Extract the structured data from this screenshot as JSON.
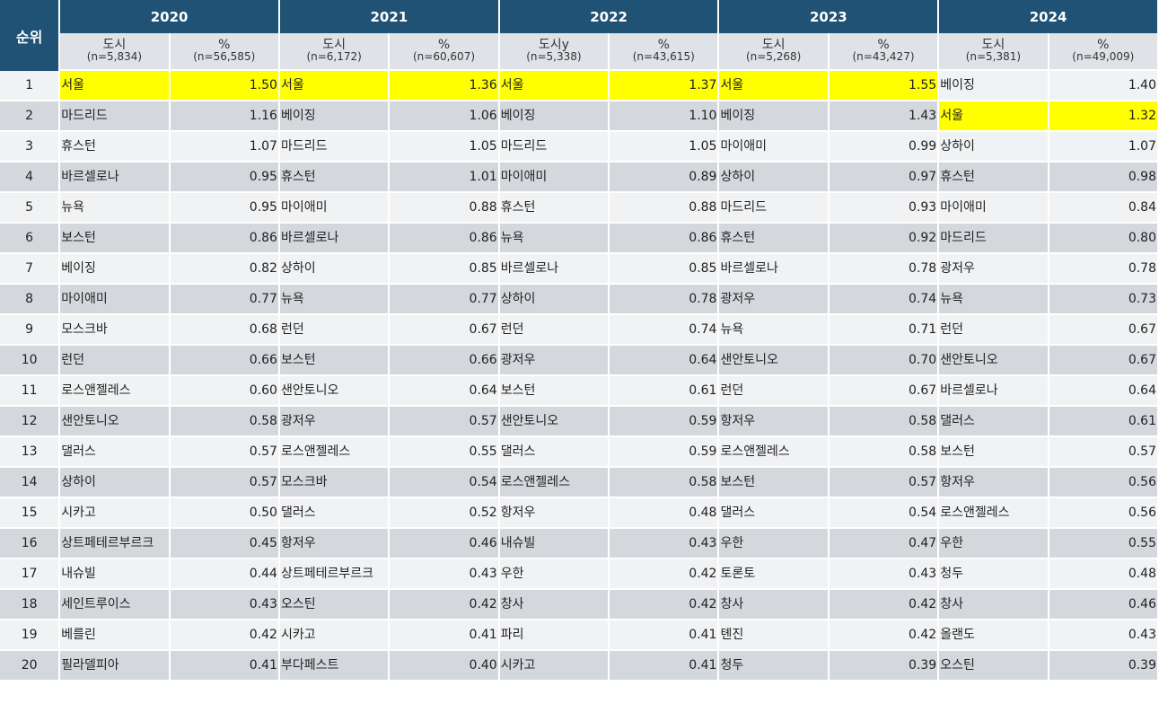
{
  "header": {
    "rank_label": "순위",
    "years": [
      "2020",
      "2021",
      "2022",
      "2023",
      "2024"
    ],
    "subheaders": [
      {
        "city": "도시",
        "city_n": "(n=5,834)",
        "pct": "%",
        "pct_n": "(n=56,585)"
      },
      {
        "city": "도시",
        "city_n": "(n=6,172)",
        "pct": "%",
        "pct_n": "(n=60,607)"
      },
      {
        "city": "도시y",
        "city_n": "(n=5,338)",
        "pct": "%",
        "pct_n": "(n=43,615)"
      },
      {
        "city": "도시",
        "city_n": "(n=5,268)",
        "pct": "%",
        "pct_n": "(n=43,427)"
      },
      {
        "city": "도시",
        "city_n": "(n=5,381)",
        "pct": "%",
        "pct_n": "(n=49,009)"
      }
    ]
  },
  "highlight_color": "#ffff00",
  "highlight_city": "서울",
  "rows": [
    {
      "rank": "1",
      "cells": [
        [
          "서울",
          "1.50"
        ],
        [
          "서울",
          "1.36"
        ],
        [
          "서울",
          "1.37"
        ],
        [
          "서울",
          "1.55"
        ],
        [
          "베이징",
          "1.40"
        ]
      ]
    },
    {
      "rank": "2",
      "cells": [
        [
          "마드리드",
          "1.16"
        ],
        [
          "베이징",
          "1.06"
        ],
        [
          "베이징",
          "1.10"
        ],
        [
          "베이징",
          "1.43"
        ],
        [
          "서울",
          "1.32"
        ]
      ]
    },
    {
      "rank": "3",
      "cells": [
        [
          "휴스턴",
          "1.07"
        ],
        [
          "마드리드",
          "1.05"
        ],
        [
          "마드리드",
          "1.05"
        ],
        [
          "마이애미",
          "0.99"
        ],
        [
          "상하이",
          "1.07"
        ]
      ]
    },
    {
      "rank": "4",
      "cells": [
        [
          "바르셀로나",
          "0.95"
        ],
        [
          "휴스턴",
          "1.01"
        ],
        [
          "마이애미",
          "0.89"
        ],
        [
          "상하이",
          "0.97"
        ],
        [
          "휴스턴",
          "0.98"
        ]
      ]
    },
    {
      "rank": "5",
      "cells": [
        [
          "뉴욕",
          "0.95"
        ],
        [
          "마이애미",
          "0.88"
        ],
        [
          "휴스턴",
          "0.88"
        ],
        [
          "마드리드",
          "0.93"
        ],
        [
          "마이애미",
          "0.84"
        ]
      ]
    },
    {
      "rank": "6",
      "cells": [
        [
          "보스턴",
          "0.86"
        ],
        [
          "바르셀로나",
          "0.86"
        ],
        [
          "뉴욕",
          "0.86"
        ],
        [
          "휴스턴",
          "0.92"
        ],
        [
          "마드리드",
          "0.80"
        ]
      ]
    },
    {
      "rank": "7",
      "cells": [
        [
          "베이징",
          "0.82"
        ],
        [
          "상하이",
          "0.85"
        ],
        [
          "바르셀로나",
          "0.85"
        ],
        [
          "바르셀로나",
          "0.78"
        ],
        [
          "광저우",
          "0.78"
        ]
      ]
    },
    {
      "rank": "8",
      "cells": [
        [
          "마이애미",
          "0.77"
        ],
        [
          "뉴욕",
          "0.77"
        ],
        [
          "상하이",
          "0.78"
        ],
        [
          "광저우",
          "0.74"
        ],
        [
          "뉴욕",
          "0.73"
        ]
      ]
    },
    {
      "rank": "9",
      "cells": [
        [
          "모스크바",
          "0.68"
        ],
        [
          "런던",
          "0.67"
        ],
        [
          "런던",
          "0.74"
        ],
        [
          "뉴욕",
          "0.71"
        ],
        [
          "런던",
          "0.67"
        ]
      ]
    },
    {
      "rank": "10",
      "cells": [
        [
          "런던",
          "0.66"
        ],
        [
          "보스턴",
          "0.66"
        ],
        [
          "광저우",
          "0.64"
        ],
        [
          "샌안토니오",
          "0.70"
        ],
        [
          "샌안토니오",
          "0.67"
        ]
      ]
    },
    {
      "rank": "11",
      "cells": [
        [
          "로스앤젤레스",
          "0.60"
        ],
        [
          "샌안토니오",
          "0.64"
        ],
        [
          "보스턴",
          "0.61"
        ],
        [
          "런던",
          "0.67"
        ],
        [
          "바르셀로나",
          "0.64"
        ]
      ]
    },
    {
      "rank": "12",
      "cells": [
        [
          "샌안토니오",
          "0.58"
        ],
        [
          "광저우",
          "0.57"
        ],
        [
          "샌안토니오",
          "0.59"
        ],
        [
          "항저우",
          "0.58"
        ],
        [
          "댈러스",
          "0.61"
        ]
      ]
    },
    {
      "rank": "13",
      "cells": [
        [
          "댈러스",
          "0.57"
        ],
        [
          "로스앤젤레스",
          "0.55"
        ],
        [
          "댈러스",
          "0.59"
        ],
        [
          "로스앤젤레스",
          "0.58"
        ],
        [
          "보스턴",
          "0.57"
        ]
      ]
    },
    {
      "rank": "14",
      "cells": [
        [
          "상하이",
          "0.57"
        ],
        [
          "모스크바",
          "0.54"
        ],
        [
          "로스앤젤레스",
          "0.58"
        ],
        [
          "보스턴",
          "0.57"
        ],
        [
          "항저우",
          "0.56"
        ]
      ]
    },
    {
      "rank": "15",
      "cells": [
        [
          "시카고",
          "0.50"
        ],
        [
          "댈러스",
          "0.52"
        ],
        [
          "항저우",
          "0.48"
        ],
        [
          "댈러스",
          "0.54"
        ],
        [
          "로스앤젤레스",
          "0.56"
        ]
      ]
    },
    {
      "rank": "16",
      "cells": [
        [
          "상트페테르부르크",
          "0.45"
        ],
        [
          "항저우",
          "0.46"
        ],
        [
          "내슈빌",
          "0.43"
        ],
        [
          "우한",
          "0.47"
        ],
        [
          "우한",
          "0.55"
        ]
      ]
    },
    {
      "rank": "17",
      "cells": [
        [
          "내슈빌",
          "0.44"
        ],
        [
          "상트페테르부르크",
          "0.43"
        ],
        [
          "우한",
          "0.42"
        ],
        [
          "토론토",
          "0.43"
        ],
        [
          "청두",
          "0.48"
        ]
      ]
    },
    {
      "rank": "18",
      "cells": [
        [
          "세인트루이스",
          "0.43"
        ],
        [
          "오스틴",
          "0.42"
        ],
        [
          "창사",
          "0.42"
        ],
        [
          "창사",
          "0.42"
        ],
        [
          "창사",
          "0.46"
        ]
      ]
    },
    {
      "rank": "19",
      "cells": [
        [
          "베를린",
          "0.42"
        ],
        [
          "시카고",
          "0.41"
        ],
        [
          "파리",
          "0.41"
        ],
        [
          "톈진",
          "0.42"
        ],
        [
          "올랜도",
          "0.43"
        ]
      ]
    },
    {
      "rank": "20",
      "cells": [
        [
          "필라델피아",
          "0.41"
        ],
        [
          "부다페스트",
          "0.40"
        ],
        [
          "시카고",
          "0.41"
        ],
        [
          "청두",
          "0.39"
        ],
        [
          "오스틴",
          "0.39"
        ]
      ]
    }
  ]
}
